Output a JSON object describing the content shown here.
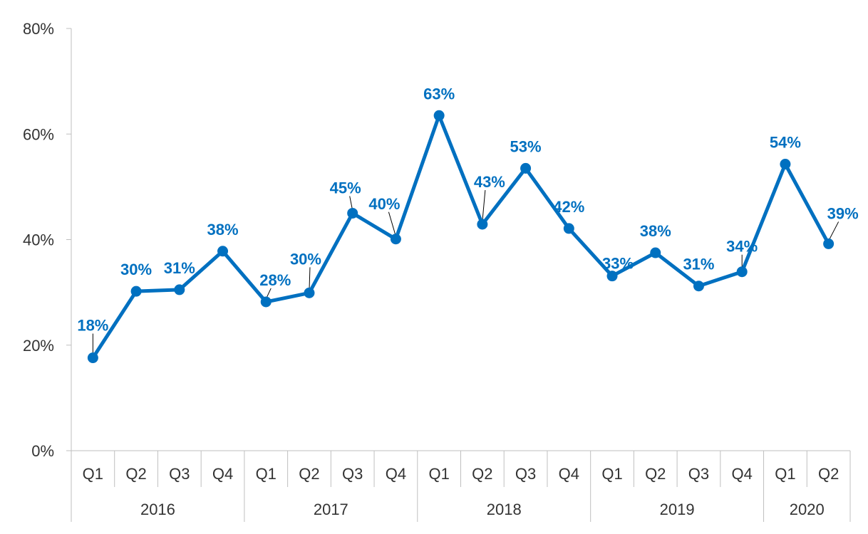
{
  "chart_data": {
    "type": "line",
    "title": "",
    "xlabel": "",
    "ylabel": "",
    "ylim": [
      0,
      80
    ],
    "yticks": [
      "0%",
      "20%",
      "40%",
      "60%",
      "80%"
    ],
    "grid": false,
    "legend": "none",
    "color": "#0070C0",
    "groups": [
      {
        "label": "2016",
        "quarters": [
          "Q1",
          "Q2",
          "Q3",
          "Q4"
        ]
      },
      {
        "label": "2017",
        "quarters": [
          "Q1",
          "Q2",
          "Q3",
          "Q4"
        ]
      },
      {
        "label": "2018",
        "quarters": [
          "Q1",
          "Q2",
          "Q3",
          "Q4"
        ]
      },
      {
        "label": "2019",
        "quarters": [
          "Q1",
          "Q2",
          "Q3",
          "Q4"
        ]
      },
      {
        "label": "2020",
        "quarters": [
          "Q1",
          "Q2"
        ]
      }
    ],
    "series": [
      {
        "values": [
          17.6,
          30.2,
          30.5,
          37.8,
          28.2,
          29.9,
          45.0,
          40.1,
          63.5,
          42.9,
          53.5,
          42.1,
          33.1,
          37.5,
          31.2,
          33.9,
          54.3,
          39.2
        ],
        "labels": [
          "18%",
          "30%",
          "31%",
          "38%",
          "28%",
          "30%",
          "45%",
          "40%",
          "63%",
          "43%",
          "53%",
          "42%",
          "33%",
          "38%",
          "31%",
          "34%",
          "54%",
          "39%"
        ]
      }
    ]
  }
}
